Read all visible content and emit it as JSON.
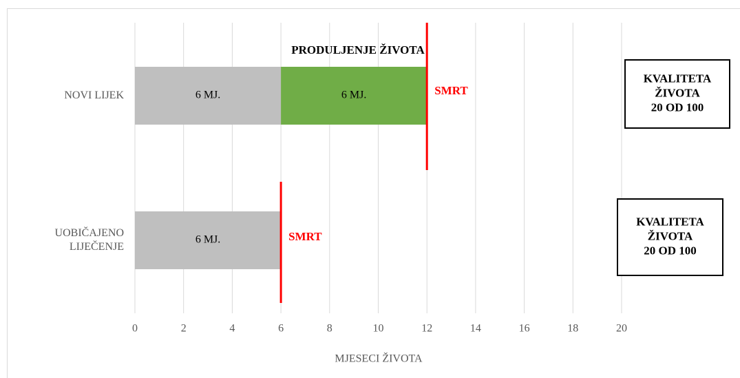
{
  "chart_data": {
    "type": "stacked-barh",
    "annotation": "PRODULJENJE ŽIVOTA",
    "xlabel": "MJESECI  ŽIVOTA",
    "categories": [
      [
        "NOVI LIJEK"
      ],
      [
        "UOBIČAJENO",
        "LIJEČENJE"
      ]
    ],
    "series": [
      {
        "color": "#bfbfbf",
        "values": [
          6,
          6
        ],
        "value_labels": [
          "6 MJ.",
          "6 MJ."
        ]
      },
      {
        "color": "#70ad47",
        "values": [
          6,
          null
        ],
        "value_labels": [
          "6 MJ.",
          null
        ]
      }
    ],
    "markers": [
      {
        "value": 12,
        "label": "SMRT",
        "color": "#ff0000"
      },
      {
        "value": 6,
        "label": "SMRT",
        "color": "#ff0000"
      }
    ],
    "quality_boxes": [
      [
        "KVALITETA",
        "ŽIVOTA",
        "20 OD 100"
      ],
      [
        "KVALITETA",
        "ŽIVOTA",
        "20 OD 100"
      ]
    ],
    "xlim": [
      0,
      20
    ],
    "xticks": [
      0,
      2,
      4,
      6,
      8,
      10,
      12,
      14,
      16,
      18,
      20
    ],
    "grid": true
  }
}
